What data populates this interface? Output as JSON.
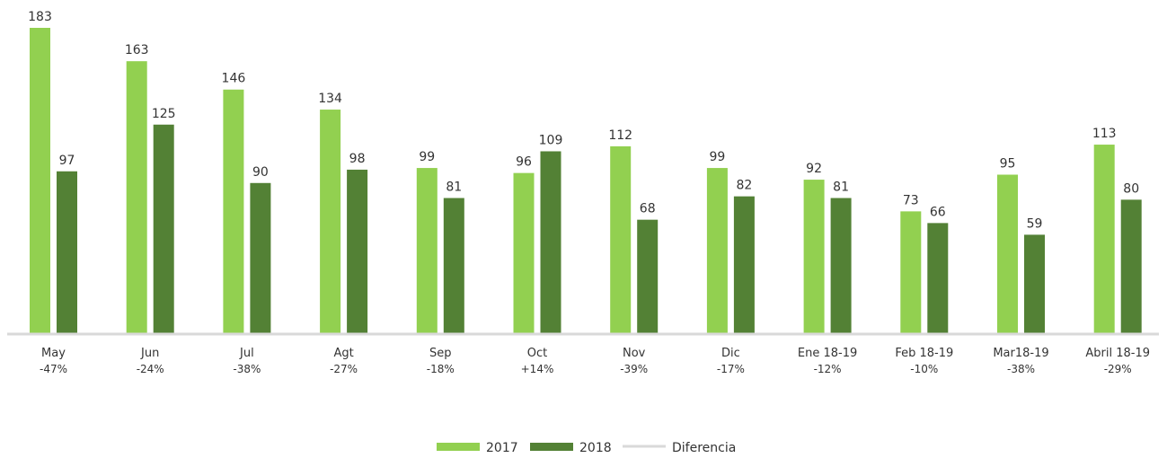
{
  "chart_data": {
    "type": "bar",
    "categories": [
      "May",
      "Jun",
      "Jul",
      "Agt",
      "Sep",
      "Oct",
      "Nov",
      "Dic",
      "Ene 18-19",
      "Feb 18-19",
      "Mar18-19",
      "Abril 18-19"
    ],
    "series": [
      {
        "name": "2017",
        "color": "#92d050",
        "values": [
          183,
          163,
          146,
          134,
          99,
          96,
          112,
          99,
          92,
          73,
          95,
          113
        ]
      },
      {
        "name": "2018",
        "color": "#538135",
        "values": [
          97,
          125,
          90,
          98,
          81,
          109,
          68,
          82,
          81,
          66,
          59,
          80
        ]
      },
      {
        "name": "Diferencia",
        "color": "#d9d9d9",
        "values": [
          "-47%",
          "-24%",
          "-38%",
          "-27%",
          "-18%",
          "+14%",
          "-39%",
          "-17%",
          "-12%",
          "-10%",
          "-38%",
          "-29%"
        ]
      }
    ],
    "title": "",
    "xlabel": "",
    "ylabel": "",
    "ylim": [
      0,
      183
    ],
    "grid": false,
    "legend_position": "bottom"
  }
}
